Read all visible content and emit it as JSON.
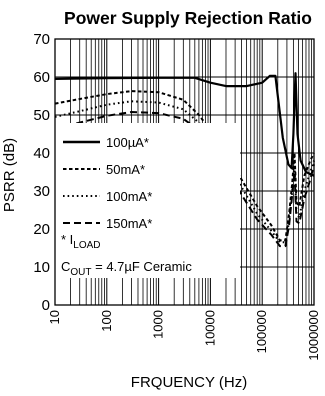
{
  "chart_data": {
    "type": "line",
    "title": "Power Supply Rejection Ratio",
    "xlabel": "FRQUENCY (Hz)",
    "ylabel": "PSRR (dB)",
    "xscale": "log",
    "xlim": [
      10,
      1000000
    ],
    "ylim": [
      0,
      70
    ],
    "grid": true,
    "x_ticks": [
      "10",
      "100",
      "1000",
      "10000",
      "100000",
      "1000000"
    ],
    "y_ticks": [
      "0",
      "10",
      "20",
      "30",
      "40",
      "50",
      "60",
      "70"
    ],
    "legend": {
      "placement": "left",
      "entries": [
        "100µA*",
        "50mA*",
        "100mA*",
        "150mA*"
      ],
      "note_prefix": "* I",
      "note_sub": "LOAD",
      "cap_prefix": "C",
      "cap_sub": "OUT",
      "cap_suffix": " = 4.7µF Ceramic"
    },
    "series": [
      {
        "name": "100µA*",
        "dash": "solid",
        "points": [
          [
            10,
            59.5
          ],
          [
            30,
            59.6
          ],
          [
            100,
            59.7
          ],
          [
            1000,
            59.8
          ],
          [
            5000,
            59.8
          ],
          [
            10000,
            58.5
          ],
          [
            20000,
            57.6
          ],
          [
            50000,
            57.6
          ],
          [
            100000,
            58.5
          ],
          [
            140000,
            60.3
          ],
          [
            180000,
            60.3
          ],
          [
            200000,
            55
          ],
          [
            250000,
            44
          ],
          [
            320000,
            37
          ],
          [
            370000,
            36
          ],
          [
            400000,
            45
          ],
          [
            440000,
            61
          ],
          [
            480000,
            45
          ],
          [
            550000,
            38
          ],
          [
            700000,
            35
          ],
          [
            1000000,
            34
          ]
        ]
      },
      {
        "name": "50mA*",
        "dash": "short",
        "points": [
          [
            10,
            53
          ],
          [
            30,
            54.2
          ],
          [
            100,
            55.5
          ],
          [
            300,
            56.3
          ],
          [
            1000,
            56
          ],
          [
            3000,
            54
          ],
          [
            6000,
            50
          ],
          [
            10000,
            46
          ],
          [
            20000,
            40
          ],
          [
            40000,
            33
          ],
          [
            80000,
            26
          ],
          [
            150000,
            21
          ],
          [
            220000,
            17
          ],
          [
            280000,
            17
          ],
          [
            330000,
            24
          ],
          [
            380000,
            32
          ],
          [
            420000,
            40
          ],
          [
            460000,
            27
          ],
          [
            520000,
            26
          ],
          [
            650000,
            34
          ],
          [
            850000,
            38
          ],
          [
            1000000,
            40
          ]
        ]
      },
      {
        "name": "100mA*",
        "dash": "dotted",
        "points": [
          [
            10,
            49.5
          ],
          [
            30,
            51
          ],
          [
            100,
            52.7
          ],
          [
            300,
            53.6
          ],
          [
            1000,
            53.3
          ],
          [
            3000,
            51.5
          ],
          [
            6000,
            48
          ],
          [
            10000,
            44
          ],
          [
            20000,
            38
          ],
          [
            40000,
            31
          ],
          [
            80000,
            24
          ],
          [
            150000,
            19.5
          ],
          [
            220000,
            16.5
          ],
          [
            280000,
            16.5
          ],
          [
            330000,
            22
          ],
          [
            380000,
            30
          ],
          [
            420000,
            37
          ],
          [
            460000,
            24
          ],
          [
            520000,
            23
          ],
          [
            650000,
            30
          ],
          [
            850000,
            35
          ],
          [
            1000000,
            38
          ]
        ]
      },
      {
        "name": "150mA*",
        "dash": "dashed",
        "points": [
          [
            10,
            46.3
          ],
          [
            30,
            48
          ],
          [
            100,
            49.8
          ],
          [
            300,
            50.8
          ],
          [
            1000,
            50.5
          ],
          [
            3000,
            49
          ],
          [
            6000,
            46
          ],
          [
            10000,
            42
          ],
          [
            20000,
            36
          ],
          [
            40000,
            29
          ],
          [
            80000,
            22.5
          ],
          [
            150000,
            18.5
          ],
          [
            220000,
            15.5
          ],
          [
            280000,
            15.5
          ],
          [
            330000,
            21
          ],
          [
            380000,
            29
          ],
          [
            420000,
            35
          ],
          [
            460000,
            22
          ],
          [
            520000,
            21.5
          ],
          [
            650000,
            28
          ],
          [
            850000,
            33
          ],
          [
            1000000,
            37
          ]
        ]
      }
    ]
  }
}
